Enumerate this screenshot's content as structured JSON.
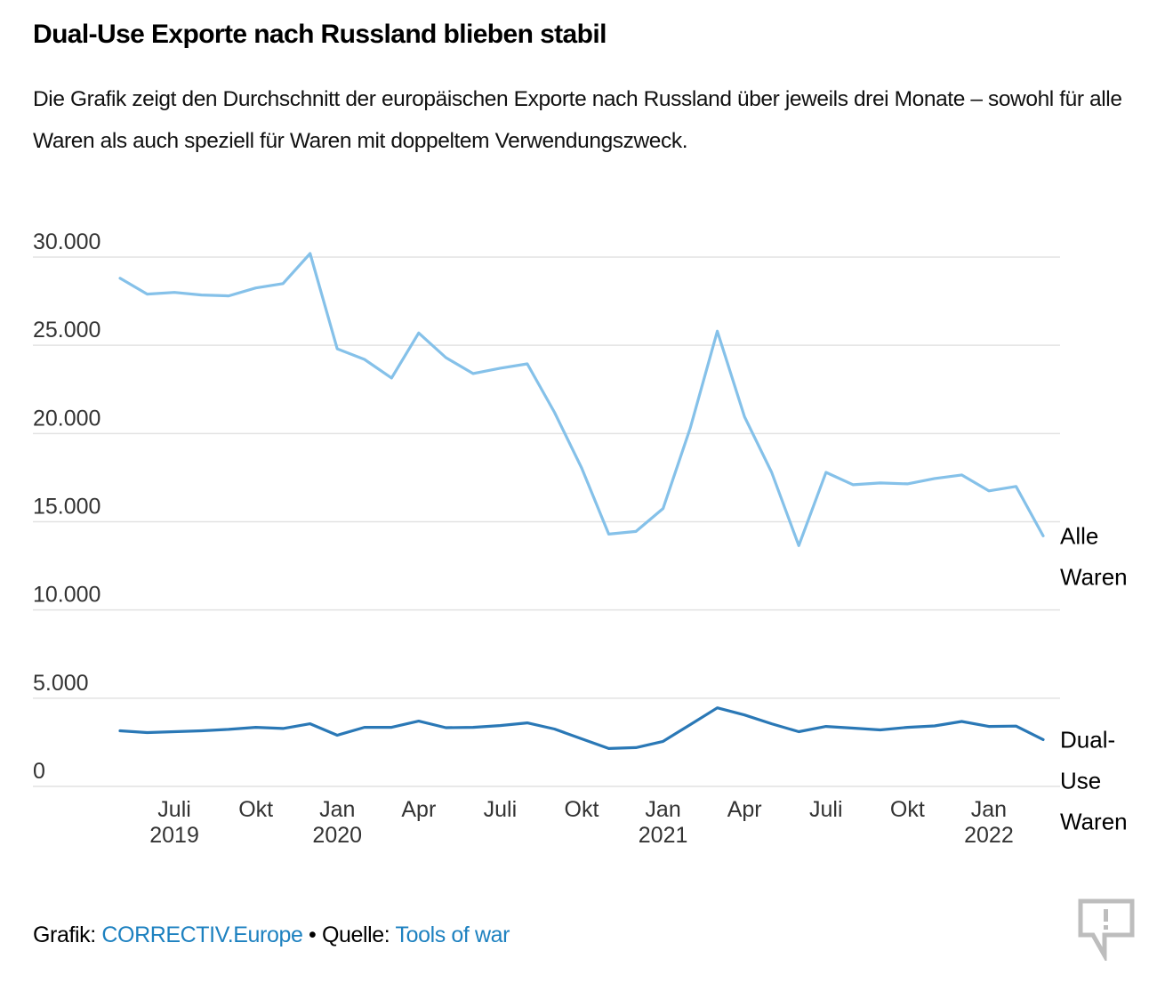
{
  "header": {
    "title": "Dual-Use Exporte nach Russland blieben stabil",
    "subtitle": "Die Grafik zeigt den Durchschnitt der europäischen Exporte nach Russland über jeweils drei Monate – sowohl für alle Waren als auch speziell für Waren mit doppeltem Verwendungszweck."
  },
  "footer": {
    "grafik_label": "Grafik:",
    "grafik_link": "CORRECTIV.Europe",
    "separator": " • ",
    "quelle_label": "Quelle:",
    "quelle_link": "Tools of war",
    "link_color": "#1d81c0"
  },
  "icons": {
    "report": "speech-bubble-exclamation-icon"
  },
  "chart_data": {
    "type": "line",
    "title": "Dual-Use Exporte nach Russland blieben stabil",
    "xlabel": "",
    "ylabel": "",
    "ylim": [
      0,
      30000
    ],
    "yticks": [
      0,
      5000,
      10000,
      15000,
      20000,
      25000,
      30000
    ],
    "ytick_labels": [
      "0",
      "5.000",
      "10.000",
      "15.000",
      "20.000",
      "25.000",
      "30.000"
    ],
    "grid": true,
    "legend": "direct labels at right end of lines",
    "x": [
      "2019-05",
      "2019-06",
      "2019-07",
      "2019-08",
      "2019-09",
      "2019-10",
      "2019-11",
      "2019-12",
      "2020-01",
      "2020-02",
      "2020-03",
      "2020-04",
      "2020-05",
      "2020-06",
      "2020-07",
      "2020-08",
      "2020-09",
      "2020-10",
      "2020-11",
      "2020-12",
      "2021-01",
      "2021-02",
      "2021-03",
      "2021-04",
      "2021-05",
      "2021-06",
      "2021-07",
      "2021-08",
      "2021-09",
      "2021-10",
      "2021-11",
      "2021-12",
      "2022-01",
      "2022-02",
      "2022-03"
    ],
    "xticks": [
      {
        "x": "2019-07",
        "label": "Juli",
        "year": "2019"
      },
      {
        "x": "2019-10",
        "label": "Okt",
        "year": ""
      },
      {
        "x": "2020-01",
        "label": "Jan",
        "year": "2020"
      },
      {
        "x": "2020-04",
        "label": "Apr",
        "year": ""
      },
      {
        "x": "2020-07",
        "label": "Juli",
        "year": ""
      },
      {
        "x": "2020-10",
        "label": "Okt",
        "year": ""
      },
      {
        "x": "2021-01",
        "label": "Jan",
        "year": "2021"
      },
      {
        "x": "2021-04",
        "label": "Apr",
        "year": ""
      },
      {
        "x": "2021-07",
        "label": "Juli",
        "year": ""
      },
      {
        "x": "2021-10",
        "label": "Okt",
        "year": ""
      },
      {
        "x": "2022-01",
        "label": "Jan",
        "year": "2022"
      }
    ],
    "series": [
      {
        "name": "Alle Waren",
        "label_lines": [
          "Alle",
          "Waren"
        ],
        "color": "#85c1e9",
        "values": [
          28800,
          27900,
          28000,
          27850,
          27800,
          28250,
          28500,
          30200,
          24800,
          24200,
          23150,
          25700,
          24300,
          23400,
          23700,
          23950,
          21200,
          18050,
          14300,
          14450,
          15750,
          20300,
          25800,
          20950,
          17800,
          13650,
          17800,
          17100,
          17200,
          17150,
          17450,
          17650,
          16750,
          17000,
          14200
        ]
      },
      {
        "name": "Dual-Use Waren",
        "label_lines": [
          "Dual-",
          "Use",
          "Waren"
        ],
        "color": "#2a78b6",
        "values": [
          3150,
          3050,
          3100,
          3150,
          3230,
          3350,
          3280,
          3550,
          2900,
          3350,
          3350,
          3700,
          3330,
          3350,
          3450,
          3600,
          3250,
          2700,
          2150,
          2200,
          2550,
          3500,
          4450,
          4050,
          3550,
          3100,
          3400,
          3300,
          3200,
          3350,
          3430,
          3680,
          3400,
          3420,
          2650
        ]
      }
    ]
  }
}
